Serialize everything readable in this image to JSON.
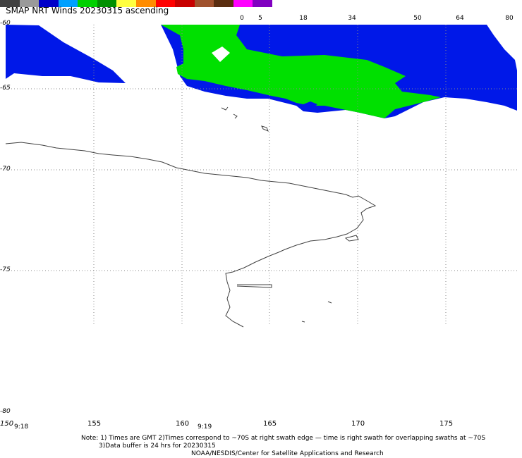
{
  "title": "SMAP NRT Winds 20230315 ascending",
  "scale": {
    "labels": [
      "0",
      "5",
      "18",
      "34",
      "50",
      "64",
      "80"
    ],
    "colors": [
      "#404040",
      "#9a9a9a",
      "#0000c8",
      "#00a0ff",
      "#00d000",
      "#009000",
      "#ffff40",
      "#ff8c00",
      "#ff0000",
      "#c80000",
      "#a0522d",
      "#5a2d10",
      "#ff00ff",
      "#8000c0"
    ]
  },
  "lat_labels": [
    "-60",
    "-65",
    "-70",
    "-75",
    "-80"
  ],
  "lon_labels": [
    "150",
    "155",
    "160",
    "165",
    "170",
    "175"
  ],
  "time_labels": [
    "9:18",
    "9:19"
  ],
  "notes": {
    "line1": "Note: 1) Times are GMT 2)Times correspond to ~70S at right swath edge — time is right swath for overlapping swaths at ~70S",
    "line2": "3)Data buffer is 24 hrs for 20230315",
    "line3": "NOAA/NESDIS/Center for Satellite Applications and Research"
  },
  "colors": {
    "wind_blue": "#0018e8",
    "wind_green": "#00e000",
    "coast": "#404040",
    "grid": "#888888"
  }
}
